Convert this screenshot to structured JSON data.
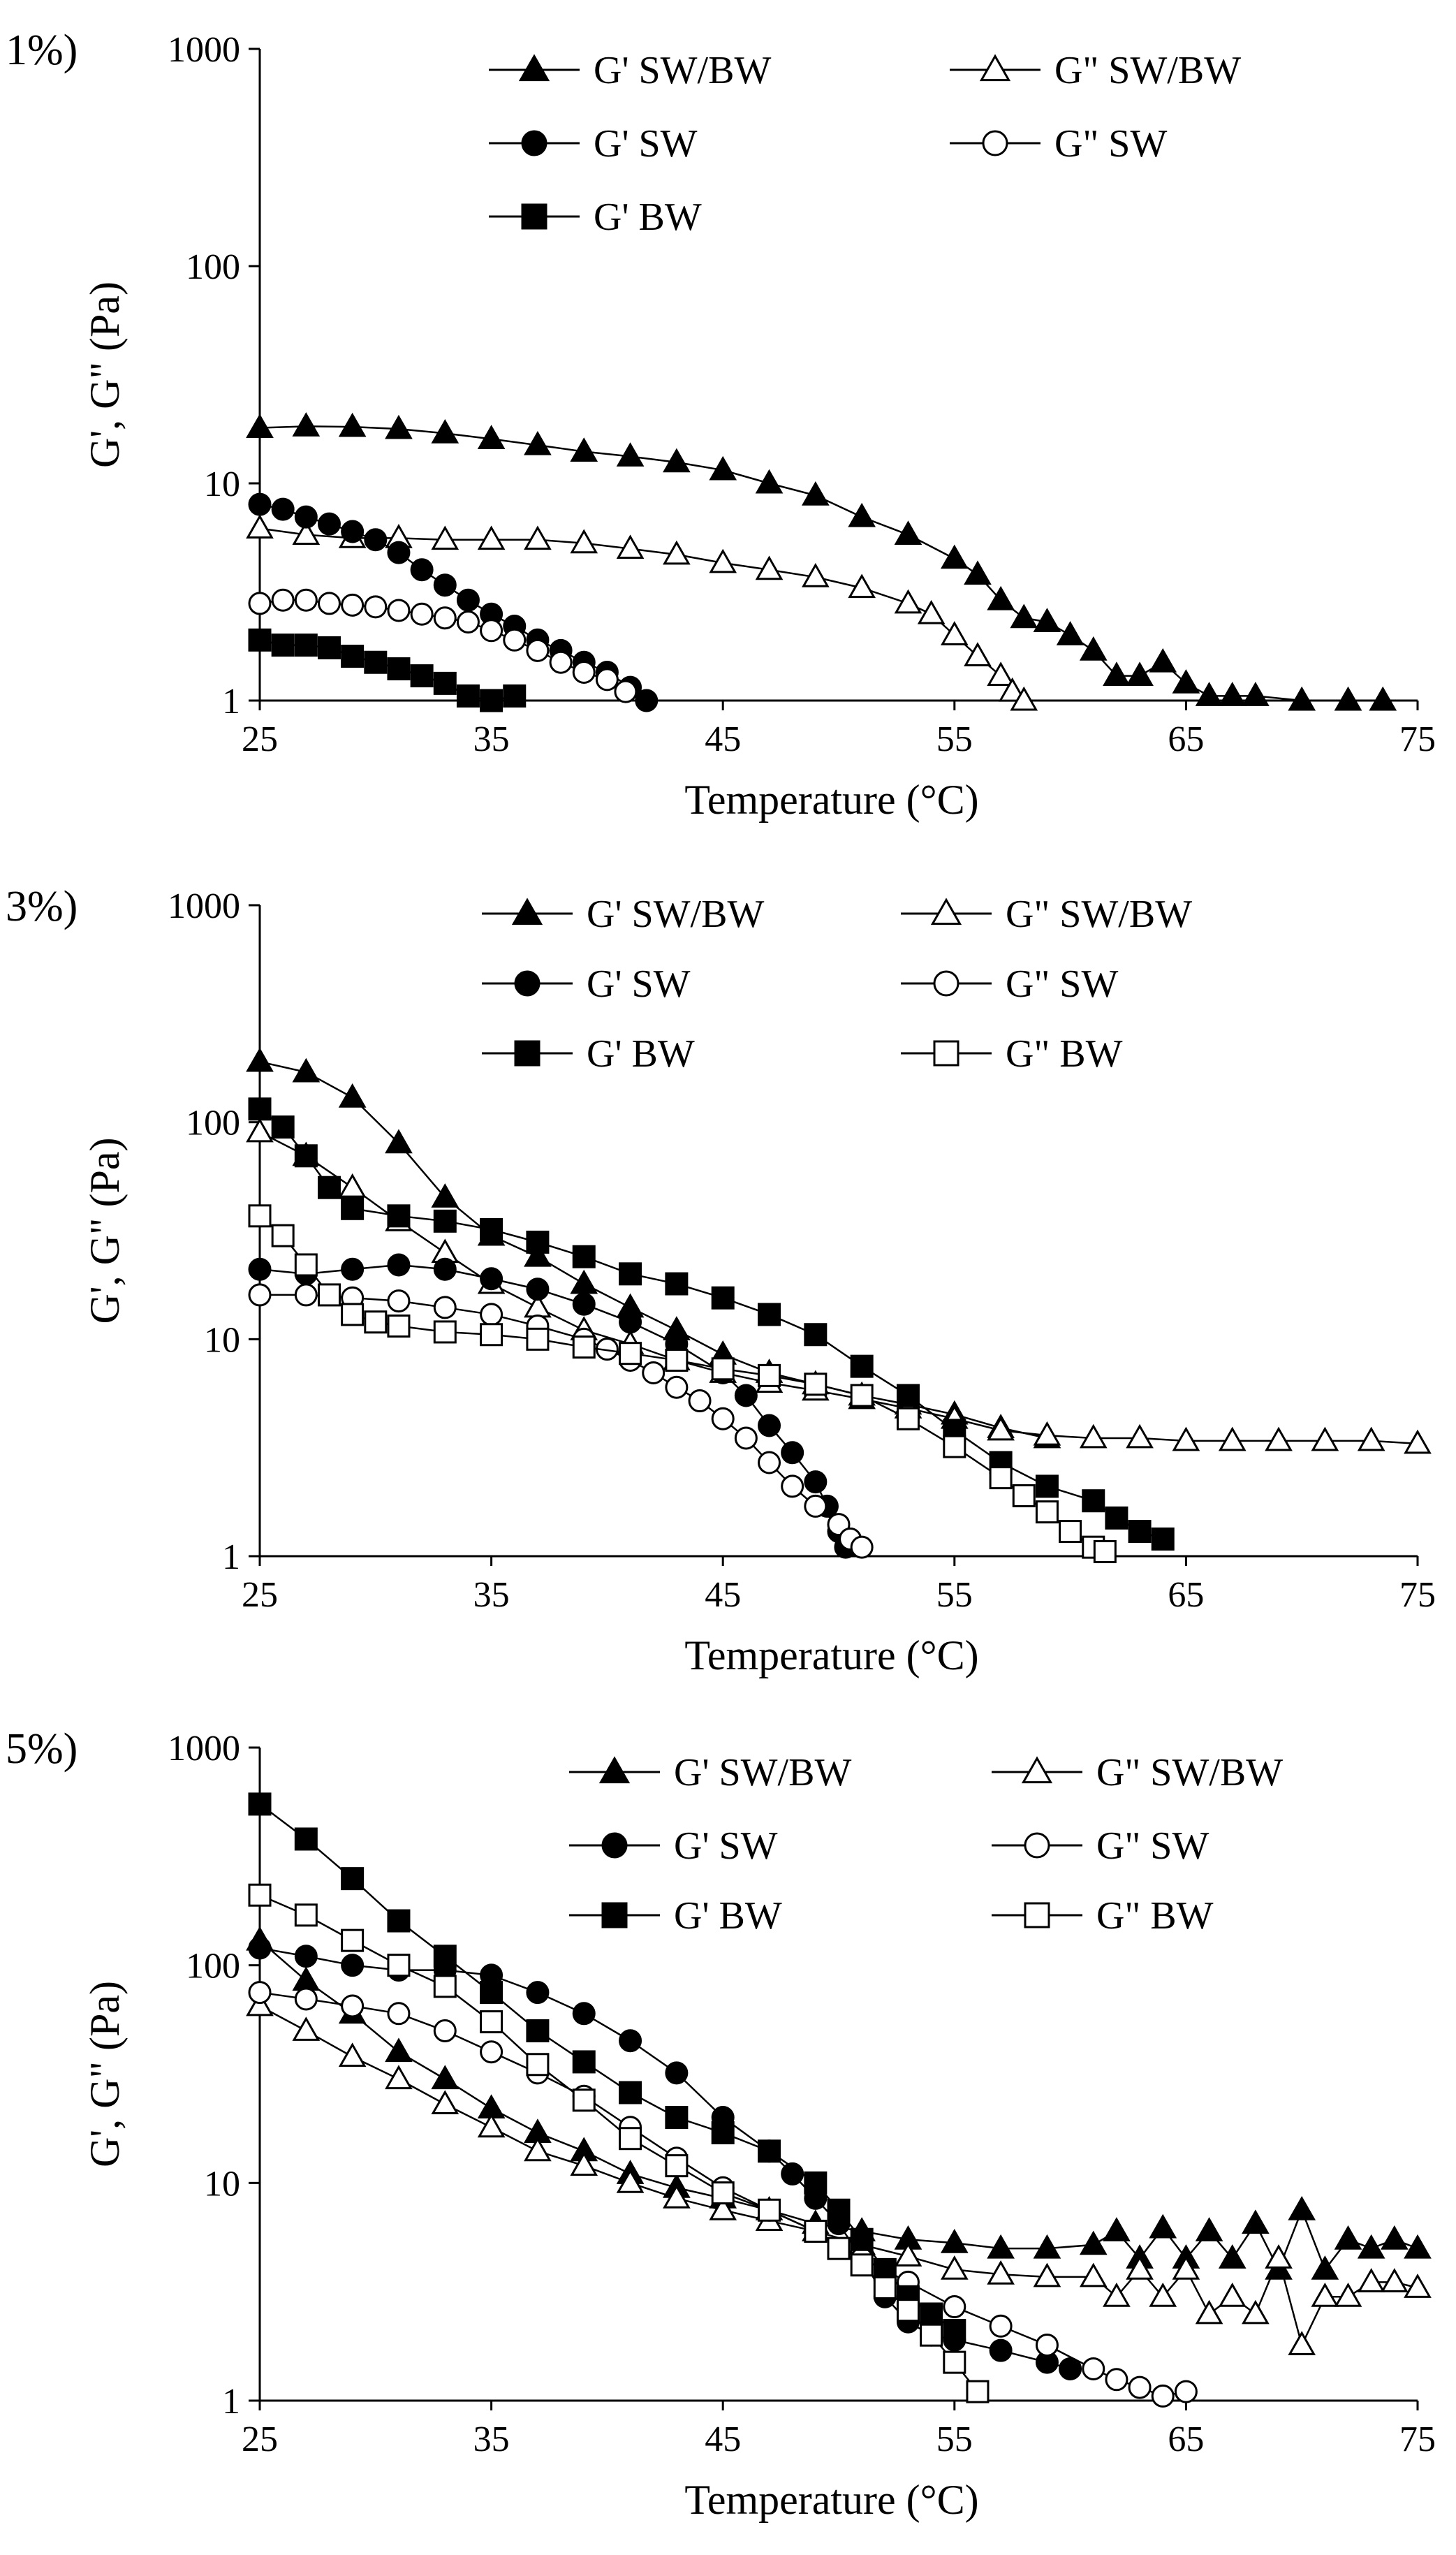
{
  "figure": {
    "x_axis_range": [
      25,
      75
    ],
    "y_axis_range": [
      1,
      1000
    ],
    "y_scale": "log"
  },
  "chart_data": [
    {
      "type": "scatter",
      "panel_label": "1%)",
      "xlabel": "Temperature (°C)",
      "ylabel": "G', G\" (Pa)",
      "xlim": [
        25,
        75
      ],
      "ylim": [
        1,
        1000
      ],
      "y_scale": "log",
      "xticks": [
        "25",
        "35",
        "45",
        "55",
        "65",
        "75"
      ],
      "yticks": [
        "1",
        "10",
        "100",
        "1000"
      ],
      "legend": [
        "G' SW/BW",
        "G\" SW/BW",
        "G' SW",
        "G\" SW",
        "G' BW"
      ],
      "series": [
        {
          "name": "G' SW/BW",
          "marker": "triangle",
          "filled": true,
          "x": [
            25,
            27,
            29,
            31,
            33,
            35,
            37,
            39,
            41,
            43,
            45,
            47,
            49,
            51,
            53,
            55,
            56,
            57,
            58,
            59,
            60,
            61,
            62,
            63,
            64,
            65,
            66,
            67,
            68,
            70,
            72,
            73.5
          ],
          "y": [
            18,
            18.3,
            18.2,
            17.8,
            17,
            16,
            15,
            14,
            13.3,
            12.5,
            11.5,
            10,
            8.8,
            7,
            5.8,
            4.5,
            3.8,
            2.9,
            2.4,
            2.3,
            2,
            1.7,
            1.3,
            1.3,
            1.5,
            1.2,
            1.05,
            1.05,
            1.05,
            1,
            1,
            1
          ]
        },
        {
          "name": "G\" SW/BW",
          "marker": "triangle",
          "filled": false,
          "x": [
            25,
            27,
            29,
            31,
            33,
            35,
            37,
            39,
            41,
            43,
            45,
            47,
            49,
            51,
            53,
            54,
            55,
            56,
            57,
            57.5,
            58
          ],
          "y": [
            6.2,
            5.8,
            5.6,
            5.6,
            5.5,
            5.5,
            5.5,
            5.3,
            5,
            4.7,
            4.3,
            4,
            3.7,
            3.3,
            2.8,
            2.5,
            2,
            1.6,
            1.3,
            1.1,
            1
          ]
        },
        {
          "name": "G' SW",
          "marker": "circle",
          "filled": true,
          "x": [
            25,
            26,
            27,
            28,
            29,
            30,
            31,
            32,
            33,
            34,
            35,
            36,
            37,
            38,
            39,
            40,
            41,
            41.7
          ],
          "y": [
            8,
            7.6,
            7,
            6.5,
            6,
            5.5,
            4.8,
            4,
            3.4,
            2.9,
            2.5,
            2.2,
            1.9,
            1.7,
            1.5,
            1.35,
            1.15,
            1
          ]
        },
        {
          "name": "G\" SW",
          "marker": "circle",
          "filled": false,
          "x": [
            25,
            26,
            27,
            28,
            29,
            30,
            31,
            32,
            33,
            34,
            35,
            36,
            37,
            38,
            39,
            40,
            40.8
          ],
          "y": [
            2.8,
            2.9,
            2.9,
            2.8,
            2.75,
            2.7,
            2.6,
            2.5,
            2.4,
            2.3,
            2.1,
            1.9,
            1.7,
            1.5,
            1.35,
            1.25,
            1.1
          ]
        },
        {
          "name": "G' BW",
          "marker": "square",
          "filled": true,
          "x": [
            25,
            26,
            27,
            28,
            29,
            30,
            31,
            32,
            33,
            34,
            35,
            36
          ],
          "y": [
            1.9,
            1.8,
            1.8,
            1.75,
            1.6,
            1.5,
            1.4,
            1.3,
            1.2,
            1.05,
            1,
            1.05
          ]
        }
      ]
    },
    {
      "type": "scatter",
      "panel_label": "3%)",
      "xlabel": "Temperature (°C)",
      "ylabel": "G', G\" (Pa)",
      "xlim": [
        25,
        75
      ],
      "ylim": [
        1,
        1000
      ],
      "y_scale": "log",
      "xticks": [
        "25",
        "35",
        "45",
        "55",
        "65",
        "75"
      ],
      "yticks": [
        "1",
        "10",
        "100",
        "1000"
      ],
      "legend": [
        "G' SW/BW",
        "G\" SW/BW",
        "G' SW",
        "G\" SW",
        "G' BW",
        "G\" BW"
      ],
      "series": [
        {
          "name": "G' SW/BW",
          "marker": "triangle",
          "filled": true,
          "x": [
            25,
            27,
            29,
            31,
            33,
            35,
            37,
            39,
            41,
            43,
            45,
            47,
            49,
            51,
            53,
            55,
            57,
            59
          ],
          "y": [
            190,
            170,
            130,
            80,
            45,
            30,
            24,
            18,
            14,
            11,
            8.5,
            7,
            6.2,
            5.5,
            5,
            4.5,
            3.9,
            3.5
          ]
        },
        {
          "name": "G\" SW/BW",
          "marker": "triangle",
          "filled": false,
          "x": [
            25,
            27,
            29,
            31,
            33,
            35,
            37,
            39,
            41,
            43,
            45,
            47,
            49,
            51,
            53,
            55,
            57,
            59,
            61,
            63,
            65,
            67,
            69,
            71,
            73,
            75
          ],
          "y": [
            90,
            70,
            50,
            35,
            25,
            18,
            14,
            11,
            9.5,
            8,
            7,
            6.3,
            5.8,
            5.3,
            4.8,
            4.3,
            3.8,
            3.6,
            3.5,
            3.5,
            3.4,
            3.4,
            3.4,
            3.4,
            3.4,
            3.3
          ]
        },
        {
          "name": "G' SW",
          "marker": "circle",
          "filled": true,
          "x": [
            25,
            27,
            29,
            31,
            33,
            35,
            37,
            39,
            41,
            43,
            45,
            46,
            47,
            48,
            49,
            49.5,
            50,
            50.3
          ],
          "y": [
            21,
            20,
            21,
            22,
            21,
            19,
            17,
            14.5,
            12,
            9.5,
            7,
            5.5,
            4,
            3,
            2.2,
            1.7,
            1.3,
            1.1
          ]
        },
        {
          "name": "G\" SW",
          "marker": "circle",
          "filled": false,
          "x": [
            25,
            27,
            29,
            31,
            33,
            35,
            37,
            39,
            40,
            41,
            42,
            43,
            44,
            45,
            46,
            47,
            48,
            49,
            50,
            50.5,
            51
          ],
          "y": [
            16,
            16,
            15.5,
            15,
            14,
            13,
            11.5,
            10,
            9,
            8,
            7,
            6,
            5.2,
            4.3,
            3.5,
            2.7,
            2.1,
            1.7,
            1.4,
            1.2,
            1.1
          ]
        },
        {
          "name": "G' BW",
          "marker": "square",
          "filled": true,
          "x": [
            25,
            26,
            27,
            28,
            29,
            31,
            33,
            35,
            37,
            39,
            41,
            43,
            45,
            47,
            49,
            51,
            53,
            55,
            57,
            59,
            61,
            62,
            63,
            64
          ],
          "y": [
            115,
            95,
            70,
            50,
            40,
            37,
            35,
            32,
            28,
            24,
            20,
            18,
            15.5,
            13,
            10.5,
            7.5,
            5.5,
            3.8,
            2.7,
            2.1,
            1.8,
            1.5,
            1.3,
            1.2
          ]
        },
        {
          "name": "G\" BW",
          "marker": "square",
          "filled": false,
          "x": [
            25,
            26,
            27,
            28,
            29,
            30,
            31,
            33,
            35,
            37,
            39,
            41,
            43,
            45,
            47,
            49,
            51,
            53,
            55,
            57,
            58,
            59,
            60,
            61,
            61.5
          ],
          "y": [
            37,
            30,
            22,
            16,
            13,
            12,
            11.5,
            10.8,
            10.5,
            10,
            9.2,
            8.6,
            8,
            7.3,
            6.8,
            6.2,
            5.5,
            4.3,
            3.2,
            2.3,
            1.9,
            1.6,
            1.3,
            1.1,
            1.05
          ]
        }
      ]
    },
    {
      "type": "scatter",
      "panel_label": "5%)",
      "xlabel": "Temperature (°C)",
      "ylabel": "G', G\" (Pa)",
      "xlim": [
        25,
        75
      ],
      "ylim": [
        1,
        1000
      ],
      "y_scale": "log",
      "xticks": [
        "25",
        "35",
        "45",
        "55",
        "65",
        "75"
      ],
      "yticks": [
        "1",
        "10",
        "100",
        "1000"
      ],
      "legend": [
        "G' SW/BW",
        "G\" SW/BW",
        "G' SW",
        "G\" SW",
        "G' BW",
        "G\" BW"
      ],
      "series": [
        {
          "name": "G' SW/BW",
          "marker": "triangle",
          "filled": true,
          "x": [
            25,
            27,
            29,
            31,
            33,
            35,
            37,
            39,
            41,
            43,
            45,
            47,
            49,
            51,
            53,
            55,
            57,
            59,
            61,
            62,
            63,
            64,
            65,
            66,
            67,
            68,
            69,
            70,
            71,
            72,
            73,
            74,
            75
          ],
          "y": [
            130,
            85,
            60,
            40,
            30,
            22,
            17,
            14,
            11,
            9.5,
            8.5,
            7.5,
            6.5,
            6,
            5.5,
            5.3,
            5,
            5,
            5.2,
            6,
            4.5,
            6.2,
            4.5,
            6,
            4.5,
            6.5,
            4,
            7.5,
            4,
            5.5,
            5,
            5.5,
            5
          ]
        },
        {
          "name": "G\" SW/BW",
          "marker": "triangle",
          "filled": false,
          "x": [
            25,
            27,
            29,
            31,
            33,
            35,
            37,
            39,
            41,
            43,
            45,
            47,
            49,
            51,
            53,
            55,
            57,
            59,
            61,
            62,
            63,
            64,
            65,
            66,
            67,
            68,
            69,
            70,
            71,
            72,
            73,
            74,
            75
          ],
          "y": [
            65,
            50,
            38,
            30,
            23,
            18,
            14,
            12,
            10,
            8.5,
            7.5,
            6.7,
            6,
            5.2,
            4.6,
            4,
            3.8,
            3.7,
            3.7,
            3,
            4,
            3,
            4,
            2.5,
            3,
            2.5,
            4.5,
            1.8,
            3,
            3,
            3.5,
            3.5,
            3.3
          ]
        },
        {
          "name": "G' SW",
          "marker": "circle",
          "filled": true,
          "x": [
            25,
            27,
            29,
            31,
            33,
            35,
            37,
            39,
            41,
            43,
            45,
            47,
            48,
            49,
            50,
            51,
            52,
            53,
            54,
            55,
            57,
            59,
            60
          ],
          "y": [
            120,
            110,
            100,
            95,
            95,
            90,
            75,
            60,
            45,
            32,
            20,
            14,
            11,
            8.5,
            6.5,
            4.5,
            3,
            2.3,
            2,
            1.9,
            1.7,
            1.5,
            1.4
          ]
        },
        {
          "name": "G\" SW",
          "marker": "circle",
          "filled": false,
          "x": [
            25,
            27,
            29,
            31,
            33,
            35,
            37,
            39,
            41,
            43,
            45,
            47,
            49,
            51,
            53,
            55,
            57,
            59,
            61,
            62,
            63,
            64,
            65
          ],
          "y": [
            75,
            70,
            65,
            60,
            50,
            40,
            32,
            25,
            18,
            13,
            9.5,
            7.5,
            6,
            4.5,
            3.5,
            2.7,
            2.2,
            1.8,
            1.4,
            1.25,
            1.15,
            1.05,
            1.1
          ]
        },
        {
          "name": "G' BW",
          "marker": "square",
          "filled": true,
          "x": [
            25,
            27,
            29,
            31,
            33,
            35,
            37,
            39,
            41,
            43,
            45,
            47,
            49,
            50,
            51,
            52,
            53,
            54,
            55
          ],
          "y": [
            550,
            380,
            250,
            160,
            110,
            75,
            50,
            36,
            26,
            20,
            17,
            14,
            10,
            7.5,
            5.5,
            4,
            3,
            2.5,
            2.1
          ]
        },
        {
          "name": "G\" BW",
          "marker": "square",
          "filled": false,
          "x": [
            25,
            27,
            29,
            31,
            33,
            35,
            37,
            39,
            41,
            43,
            45,
            47,
            49,
            50,
            51,
            52,
            53,
            54,
            55,
            56
          ],
          "y": [
            210,
            170,
            130,
            100,
            80,
            55,
            35,
            24,
            16,
            12,
            9,
            7.5,
            6,
            5,
            4.2,
            3.3,
            2.6,
            2,
            1.5,
            1.1
          ]
        }
      ]
    }
  ]
}
